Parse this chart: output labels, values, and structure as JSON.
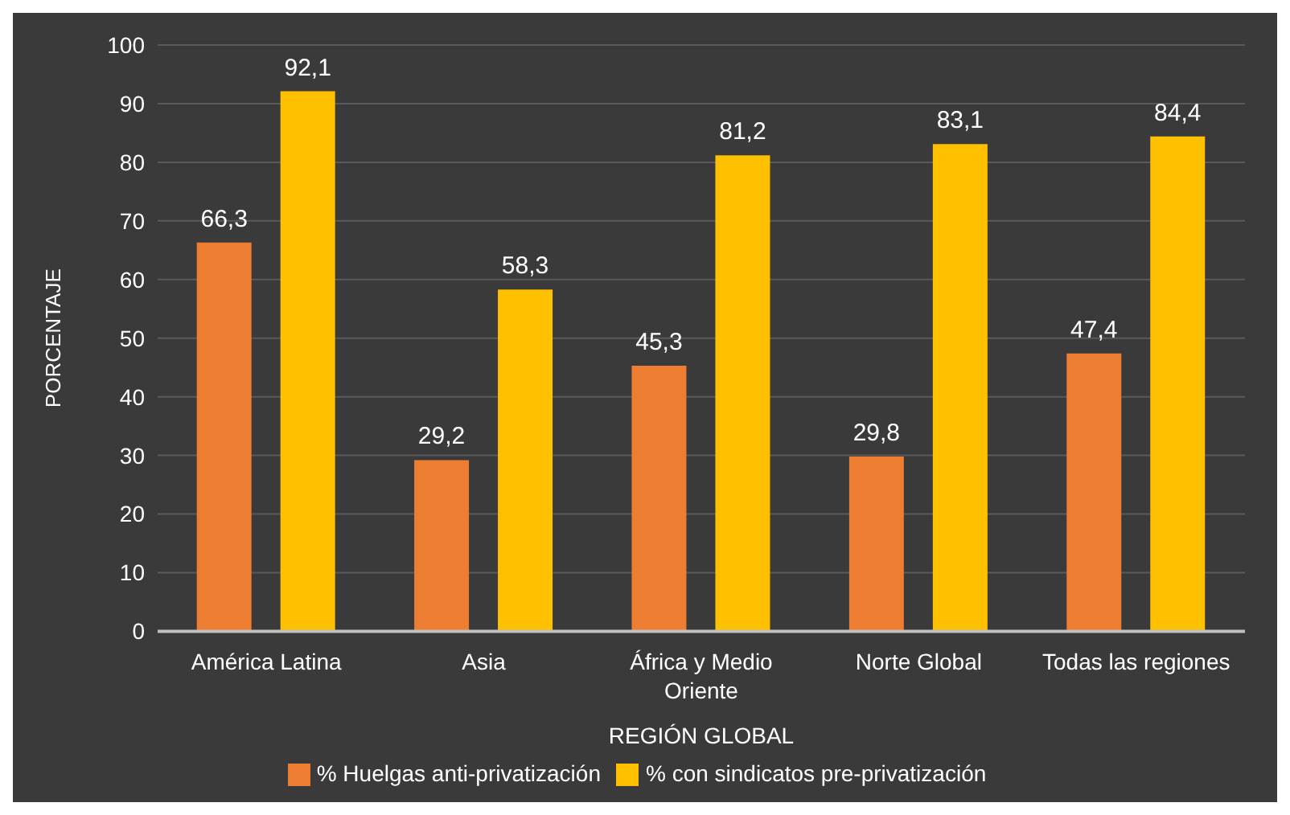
{
  "chart_data": {
    "type": "bar",
    "xlabel": "REGIÓN GLOBAL",
    "ylabel": "PORCENTAJE",
    "categories": [
      "América Latina",
      "Asia",
      "África y Medio Oriente",
      "Norte Global",
      "Todas las regiones"
    ],
    "series": [
      {
        "name": "% Huelgas anti-privatización",
        "color": "#ed7d31",
        "values": [
          66.3,
          29.2,
          45.3,
          29.8,
          47.4
        ],
        "value_labels": [
          "66,3",
          "29,2",
          "45,3",
          "29,8",
          "47,4"
        ]
      },
      {
        "name": "% con sindicatos pre-privatización",
        "color": "#ffc000",
        "values": [
          92.1,
          58.3,
          81.2,
          83.1,
          84.4
        ],
        "value_labels": [
          "92,1",
          "58,3",
          "81,2",
          "83,1",
          "84,4"
        ]
      }
    ],
    "ylim": [
      0,
      100
    ],
    "yticks": [
      0,
      10,
      20,
      30,
      40,
      50,
      60,
      70,
      80,
      90,
      100
    ],
    "grid": "y",
    "legend": "bottom"
  }
}
